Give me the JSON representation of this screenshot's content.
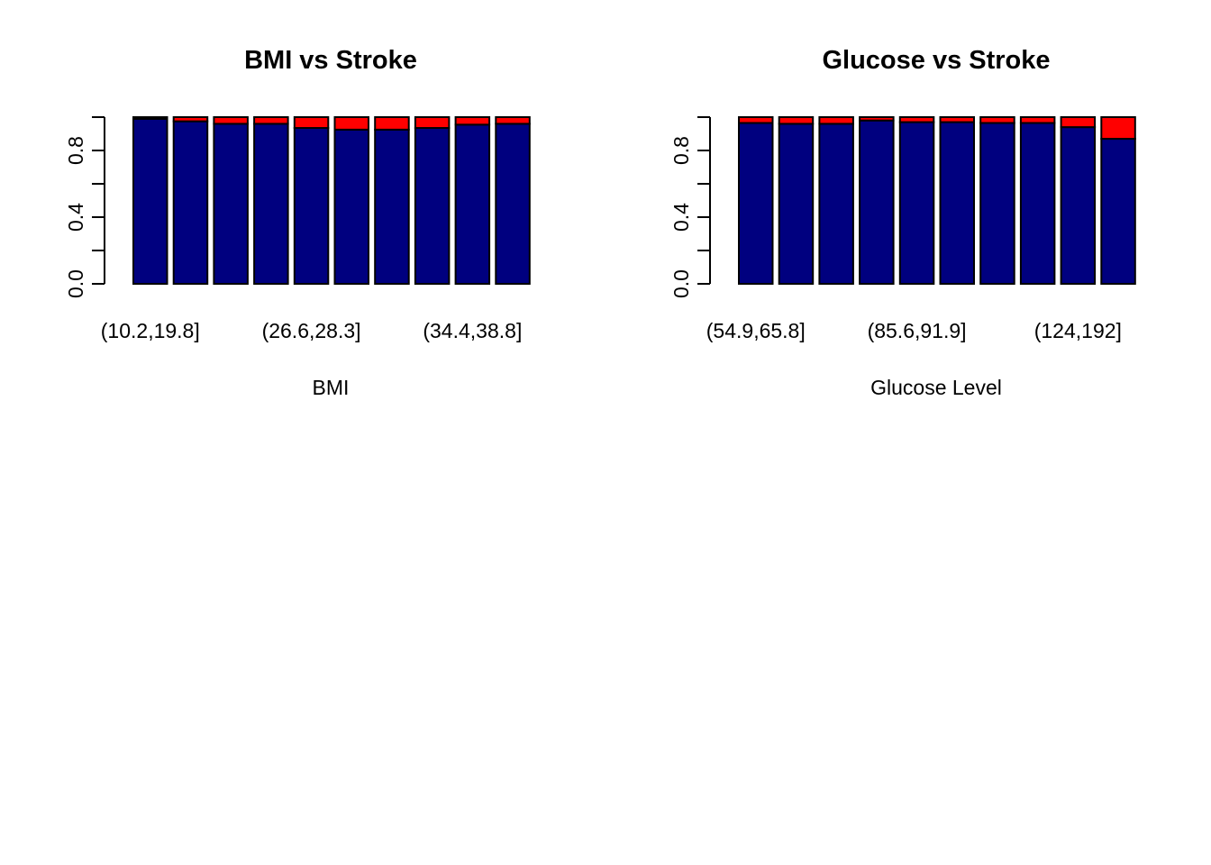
{
  "colors": {
    "no_stroke": "#00007F",
    "stroke": "#FF0000",
    "axis": "#000000",
    "background": "#FFFFFF"
  },
  "chart_data": [
    {
      "type": "bar",
      "stacked": true,
      "title": "BMI vs Stroke",
      "xlabel": "BMI",
      "ylabel": "",
      "ylim": [
        0,
        1
      ],
      "yticks": [
        0,
        0.2,
        0.4,
        0.6,
        0.8,
        1.0
      ],
      "ytick_labels": [
        "0.0",
        "",
        "0.4",
        "",
        "0.8",
        ""
      ],
      "categories": [
        "(10.2,19.8]",
        "",
        "",
        "",
        "(26.6,28.3]",
        "",
        "",
        "",
        "(34.4,38.8]",
        ""
      ],
      "series": [
        {
          "color": "#00007F",
          "values": [
            0.99,
            0.975,
            0.96,
            0.96,
            0.935,
            0.925,
            0.925,
            0.935,
            0.955,
            0.96
          ]
        },
        {
          "color": "#FF0000",
          "values": [
            0.01,
            0.025,
            0.04,
            0.04,
            0.065,
            0.075,
            0.075,
            0.065,
            0.045,
            0.04
          ]
        }
      ]
    },
    {
      "type": "bar",
      "stacked": true,
      "title": "Glucose vs Stroke",
      "xlabel": "Glucose Level",
      "ylabel": "",
      "ylim": [
        0,
        1
      ],
      "yticks": [
        0,
        0.2,
        0.4,
        0.6,
        0.8,
        1.0
      ],
      "ytick_labels": [
        "0.0",
        "",
        "0.4",
        "",
        "0.8",
        ""
      ],
      "categories": [
        "(54.9,65.8]",
        "",
        "",
        "",
        "(85.6,91.9]",
        "",
        "",
        "",
        "(124,192]",
        ""
      ],
      "series": [
        {
          "color": "#00007F",
          "values": [
            0.965,
            0.96,
            0.96,
            0.98,
            0.97,
            0.97,
            0.965,
            0.965,
            0.94,
            0.87
          ]
        },
        {
          "color": "#FF0000",
          "values": [
            0.035,
            0.04,
            0.04,
            0.02,
            0.03,
            0.03,
            0.035,
            0.035,
            0.06,
            0.13
          ]
        }
      ]
    }
  ]
}
